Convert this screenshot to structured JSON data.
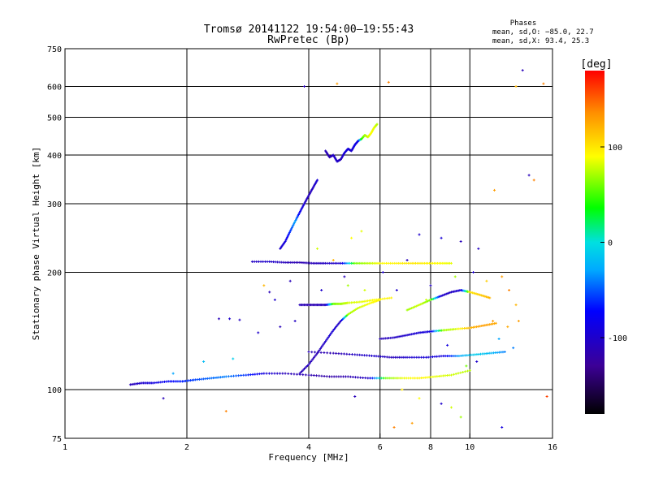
{
  "chart_data": {
    "type": "scatter",
    "title": "Tromsø 20141122 19:54:00–19:55:43",
    "subtitle": "RwPretec (Bp)",
    "xlabel": "Frequency [MHz]",
    "ylabel": "Stationary phase Virtual Height [km]",
    "x_scale": "log",
    "y_scale": "log",
    "xlim": [
      1,
      16
    ],
    "ylim": [
      75,
      750
    ],
    "x_ticks": [
      1,
      2,
      4,
      6,
      8,
      10,
      16
    ],
    "y_ticks": [
      75,
      100,
      200,
      300,
      400,
      500,
      600,
      750
    ],
    "x_gridlines": [
      2,
      4,
      6,
      8,
      10
    ],
    "y_gridlines": [
      100,
      200,
      300,
      400,
      500,
      600
    ],
    "grid": true,
    "stats": {
      "heading": "Phases",
      "line1": "mean, sd,O: −85.0, 22.7",
      "line2": "mean, sd,X:  93.4, 25.3"
    },
    "colorbar": {
      "label": "[deg]",
      "range": [
        -180,
        180
      ],
      "ticks": [
        100,
        0,
        -100
      ],
      "palette": "rainbow",
      "placement": "right"
    },
    "traces": [
      {
        "f": [
          1.45,
          1.55,
          1.65,
          1.8,
          1.95,
          2.1,
          2.3,
          2.5,
          2.8,
          3.1,
          3.5,
          4.0,
          4.5,
          5.0,
          5.6,
          6.2,
          6.8,
          7.5,
          8.2,
          9.0,
          10.0
        ],
        "h": [
          103,
          104,
          104,
          105,
          105,
          106,
          107,
          108,
          109,
          110,
          110,
          109,
          108,
          108,
          107,
          107,
          107,
          107,
          108,
          109,
          112
        ],
        "phase": [
          -110,
          -100,
          -90,
          -75,
          -65,
          -55,
          -45,
          -40,
          -60,
          -90,
          -110,
          -115,
          -120,
          -115,
          -105,
          60,
          85,
          95,
          85,
          80,
          75
        ]
      },
      {
        "f": [
          3.8,
          4.0,
          4.2,
          4.4,
          4.6,
          4.8,
          5.0,
          5.3,
          5.7,
          6.0
        ],
        "h": [
          110,
          116,
          124,
          133,
          142,
          150,
          156,
          162,
          167,
          170
        ],
        "phase": [
          -110,
          -108,
          -112,
          -100,
          -95,
          -105,
          70,
          80,
          90,
          95
        ]
      },
      {
        "f": [
          6.0,
          6.5,
          7.0,
          7.5,
          8.0,
          8.6,
          9.2,
          10.0,
          10.8,
          11.6
        ],
        "h": [
          135,
          136,
          138,
          140,
          141,
          142,
          143,
          144,
          146,
          148
        ],
        "phase": [
          -110,
          -105,
          -100,
          -95,
          -90,
          70,
          80,
          120,
          130,
          125
        ]
      },
      {
        "f": [
          4.0,
          4.6,
          5.2,
          5.8,
          6.4,
          7.0,
          7.8,
          8.6,
          9.4,
          10.3,
          11.2,
          12.2
        ],
        "h": [
          125,
          124,
          123,
          122,
          121,
          121,
          121,
          122,
          122,
          123,
          124,
          125
        ],
        "phase": [
          -110,
          -115,
          -105,
          -100,
          -110,
          -100,
          -95,
          -90,
          -30,
          -10,
          -20,
          -40
        ]
      },
      {
        "f": [
          4.4,
          4.5,
          4.6,
          4.7,
          4.8,
          4.9,
          5.0,
          5.1,
          5.2,
          5.3,
          5.4,
          5.5,
          5.6,
          5.7,
          5.8,
          5.9
        ],
        "h": [
          410,
          395,
          400,
          385,
          390,
          405,
          415,
          410,
          425,
          435,
          440,
          450,
          445,
          455,
          470,
          480
        ],
        "phase": [
          -110,
          -115,
          -105,
          -100,
          -110,
          -95,
          -90,
          -100,
          -85,
          -90,
          40,
          70,
          80,
          90,
          85,
          75
        ]
      },
      {
        "f": [
          2.9,
          3.2,
          3.5,
          3.8,
          4.1,
          4.4,
          4.8,
          5.2,
          5.6,
          6.0,
          6.6,
          7.2,
          7.8,
          8.4,
          9.0
        ],
        "h": [
          213,
          213,
          212,
          212,
          211,
          211,
          211,
          211,
          211,
          211,
          211,
          211,
          211,
          211,
          211
        ],
        "phase": [
          -105,
          -100,
          -110,
          -115,
          -110,
          -105,
          -100,
          60,
          75,
          90,
          95,
          100,
          95,
          90,
          85
        ]
      },
      {
        "f": [
          3.4,
          3.5,
          3.6,
          3.7,
          3.8,
          3.9,
          4.0,
          4.1,
          4.2
        ],
        "h": [
          230,
          240,
          255,
          270,
          285,
          300,
          315,
          330,
          345
        ],
        "phase": [
          -100,
          -90,
          -60,
          -30,
          -80,
          -100,
          -110,
          -105,
          -95
        ]
      },
      {
        "f": [
          3.8,
          4.0,
          4.2,
          4.4,
          4.6,
          4.8,
          5.0,
          5.4,
          5.8,
          6.4
        ],
        "h": [
          165,
          165,
          165,
          165,
          166,
          166,
          167,
          168,
          170,
          172
        ],
        "phase": [
          -110,
          -115,
          -112,
          -108,
          60,
          70,
          80,
          85,
          90,
          95
        ]
      },
      {
        "f": [
          7.0,
          7.5,
          8.0,
          8.5,
          9.0,
          9.5,
          10.0,
          10.6,
          11.2
        ],
        "h": [
          160,
          165,
          170,
          174,
          178,
          180,
          178,
          175,
          172
        ],
        "phase": [
          70,
          80,
          60,
          -100,
          -105,
          -95,
          100,
          110,
          120
        ]
      }
    ],
    "scatter": [
      [
        2.4,
        152,
        -110
      ],
      [
        2.55,
        152,
        -100
      ],
      [
        2.7,
        151,
        -105
      ],
      [
        2.2,
        118,
        -20
      ],
      [
        2.6,
        120,
        -10
      ],
      [
        3.1,
        185,
        120
      ],
      [
        3.2,
        178,
        -110
      ],
      [
        3.3,
        170,
        -100
      ],
      [
        4.7,
        610,
        130
      ],
      [
        3.9,
        600,
        -110
      ],
      [
        6.3,
        615,
        140
      ],
      [
        13.5,
        660,
        -110
      ],
      [
        15.2,
        610,
        140
      ],
      [
        13.0,
        600,
        120
      ],
      [
        14.0,
        355,
        -110
      ],
      [
        14.4,
        345,
        140
      ],
      [
        11.5,
        325,
        130
      ],
      [
        7.5,
        250,
        -100
      ],
      [
        8.5,
        245,
        -95
      ],
      [
        9.5,
        240,
        -110
      ],
      [
        10.5,
        230,
        -105
      ],
      [
        12.0,
        195,
        130
      ],
      [
        12.5,
        180,
        140
      ],
      [
        13.0,
        165,
        120
      ],
      [
        11.0,
        190,
        110
      ],
      [
        9.0,
        90,
        80
      ],
      [
        9.5,
        85,
        70
      ],
      [
        7.2,
        82,
        130
      ],
      [
        6.5,
        80,
        140
      ],
      [
        12.0,
        80,
        -90
      ],
      [
        15.5,
        96,
        160
      ],
      [
        6.8,
        100,
        100
      ],
      [
        7.5,
        95,
        90
      ],
      [
        8.5,
        92,
        -100
      ],
      [
        5.2,
        96,
        -110
      ],
      [
        1.75,
        95,
        -110
      ],
      [
        2.5,
        88,
        140
      ],
      [
        1.85,
        110,
        -30
      ],
      [
        4.2,
        230,
        80
      ],
      [
        4.6,
        215,
        120
      ],
      [
        5.1,
        245,
        90
      ],
      [
        5.4,
        255,
        85
      ],
      [
        3.6,
        190,
        -110
      ],
      [
        4.3,
        180,
        -100
      ],
      [
        5.0,
        185,
        70
      ],
      [
        6.6,
        180,
        -100
      ],
      [
        7.8,
        170,
        80
      ],
      [
        8.8,
        130,
        -90
      ],
      [
        9.8,
        115,
        60
      ],
      [
        10.4,
        118,
        -100
      ],
      [
        11.8,
        135,
        -30
      ],
      [
        12.8,
        128,
        -40
      ],
      [
        3.0,
        140,
        -100
      ],
      [
        3.4,
        145,
        -110
      ],
      [
        3.7,
        150,
        -105
      ],
      [
        4.9,
        195,
        -110
      ],
      [
        5.5,
        180,
        80
      ],
      [
        6.1,
        200,
        -100
      ],
      [
        7.0,
        215,
        -110
      ],
      [
        8.0,
        185,
        -105
      ],
      [
        9.2,
        195,
        70
      ],
      [
        10.2,
        200,
        -100
      ],
      [
        11.4,
        150,
        130
      ],
      [
        12.4,
        145,
        125
      ],
      [
        13.2,
        150,
        130
      ]
    ]
  }
}
